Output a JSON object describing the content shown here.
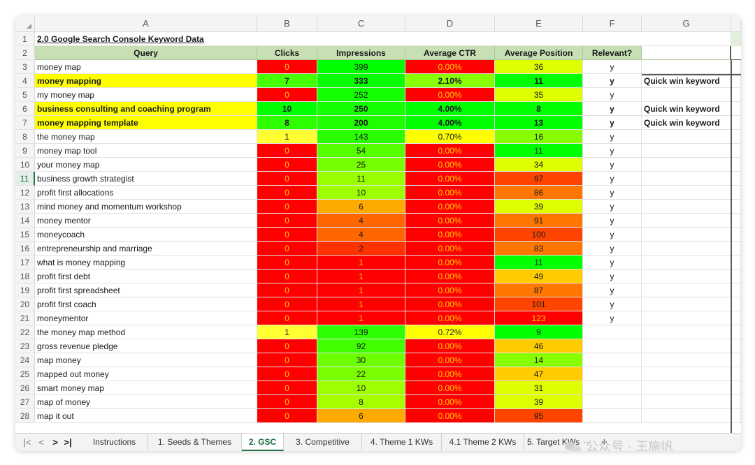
{
  "colors": {
    "header_bg": "#c6e0b4",
    "highlight_yellow": "#ffff00",
    "heat_red": "#ff0000",
    "heat_green": "#00ff00",
    "accent": "#217346"
  },
  "columns": [
    "A",
    "B",
    "C",
    "D",
    "E",
    "F",
    "G"
  ],
  "sheet": {
    "title": "2.0 Google Search Console Keyword Data",
    "headers": [
      "Query",
      "Clicks",
      "Impressions",
      "Average CTR",
      "Average Position",
      "Relevant?",
      ""
    ],
    "rows": [
      {
        "n": "3",
        "query": "money map",
        "clicks": "0",
        "impressions": "399",
        "ctr": "0.00%",
        "position": "36",
        "relevant": "y",
        "note": "",
        "hl": false
      },
      {
        "n": "4",
        "query": "money mapping",
        "clicks": "7",
        "impressions": "333",
        "ctr": "2.10%",
        "position": "11",
        "relevant": "y",
        "note": "Quick win keyword",
        "hl": true
      },
      {
        "n": "5",
        "query": "my money map",
        "clicks": "0",
        "impressions": "252",
        "ctr": "0.00%",
        "position": "35",
        "relevant": "y",
        "note": "",
        "hl": false
      },
      {
        "n": "6",
        "query": "business consulting and coaching program",
        "clicks": "10",
        "impressions": "250",
        "ctr": "4.00%",
        "position": "8",
        "relevant": "y",
        "note": "Quick win keyword",
        "hl": true
      },
      {
        "n": "7",
        "query": "money mapping template",
        "clicks": "8",
        "impressions": "200",
        "ctr": "4.00%",
        "position": "13",
        "relevant": "y",
        "note": "Quick win keyword",
        "hl": true
      },
      {
        "n": "8",
        "query": "the money map",
        "clicks": "1",
        "impressions": "143",
        "ctr": "0.70%",
        "position": "16",
        "relevant": "y",
        "note": "",
        "hl": false
      },
      {
        "n": "9",
        "query": "money map tool",
        "clicks": "0",
        "impressions": "54",
        "ctr": "0.00%",
        "position": "11",
        "relevant": "y",
        "note": "",
        "hl": false
      },
      {
        "n": "10",
        "query": "your money map",
        "clicks": "0",
        "impressions": "25",
        "ctr": "0.00%",
        "position": "34",
        "relevant": "y",
        "note": "",
        "hl": false
      },
      {
        "n": "11",
        "query": "business growth strategist",
        "clicks": "0",
        "impressions": "11",
        "ctr": "0.00%",
        "position": "97",
        "relevant": "y",
        "note": "",
        "hl": false
      },
      {
        "n": "12",
        "query": "profit first allocations",
        "clicks": "0",
        "impressions": "10",
        "ctr": "0.00%",
        "position": "86",
        "relevant": "y",
        "note": "",
        "hl": false
      },
      {
        "n": "13",
        "query": "mind money and momentum workshop",
        "clicks": "0",
        "impressions": "6",
        "ctr": "0.00%",
        "position": "39",
        "relevant": "y",
        "note": "",
        "hl": false
      },
      {
        "n": "14",
        "query": "money mentor",
        "clicks": "0",
        "impressions": "4",
        "ctr": "0.00%",
        "position": "91",
        "relevant": "y",
        "note": "",
        "hl": false
      },
      {
        "n": "15",
        "query": "moneycoach",
        "clicks": "0",
        "impressions": "4",
        "ctr": "0.00%",
        "position": "100",
        "relevant": "y",
        "note": "",
        "hl": false
      },
      {
        "n": "16",
        "query": "entrepreneurship and marriage",
        "clicks": "0",
        "impressions": "2",
        "ctr": "0.00%",
        "position": "83",
        "relevant": "y",
        "note": "",
        "hl": false
      },
      {
        "n": "17",
        "query": "what is money mapping",
        "clicks": "0",
        "impressions": "1",
        "ctr": "0.00%",
        "position": "11",
        "relevant": "y",
        "note": "",
        "hl": false
      },
      {
        "n": "18",
        "query": "profit first debt",
        "clicks": "0",
        "impressions": "1",
        "ctr": "0.00%",
        "position": "49",
        "relevant": "y",
        "note": "",
        "hl": false
      },
      {
        "n": "19",
        "query": "profit first spreadsheet",
        "clicks": "0",
        "impressions": "1",
        "ctr": "0.00%",
        "position": "87",
        "relevant": "y",
        "note": "",
        "hl": false
      },
      {
        "n": "20",
        "query": "profit first coach",
        "clicks": "0",
        "impressions": "1",
        "ctr": "0.00%",
        "position": "101",
        "relevant": "y",
        "note": "",
        "hl": false
      },
      {
        "n": "21",
        "query": "moneymentor",
        "clicks": "0",
        "impressions": "1",
        "ctr": "0.00%",
        "position": "123",
        "relevant": "y",
        "note": "",
        "hl": false
      },
      {
        "n": "22",
        "query": "the money map method",
        "clicks": "1",
        "impressions": "139",
        "ctr": "0.72%",
        "position": "9",
        "relevant": "",
        "note": "",
        "hl": false
      },
      {
        "n": "23",
        "query": "gross revenue pledge",
        "clicks": "0",
        "impressions": "92",
        "ctr": "0.00%",
        "position": "46",
        "relevant": "",
        "note": "",
        "hl": false
      },
      {
        "n": "24",
        "query": "map money",
        "clicks": "0",
        "impressions": "30",
        "ctr": "0.00%",
        "position": "14",
        "relevant": "",
        "note": "",
        "hl": false
      },
      {
        "n": "25",
        "query": "mapped out money",
        "clicks": "0",
        "impressions": "22",
        "ctr": "0.00%",
        "position": "47",
        "relevant": "",
        "note": "",
        "hl": false
      },
      {
        "n": "26",
        "query": "smart money map",
        "clicks": "0",
        "impressions": "10",
        "ctr": "0.00%",
        "position": "31",
        "relevant": "",
        "note": "",
        "hl": false
      },
      {
        "n": "27",
        "query": "map of money",
        "clicks": "0",
        "impressions": "8",
        "ctr": "0.00%",
        "position": "39",
        "relevant": "",
        "note": "",
        "hl": false
      },
      {
        "n": "28",
        "query": "map it out",
        "clicks": "0",
        "impressions": "6",
        "ctr": "0.00%",
        "position": "95",
        "relevant": "",
        "note": "",
        "hl": false
      }
    ]
  },
  "tabs": {
    "nav": [
      "|<",
      "<",
      ">",
      ">|"
    ],
    "items": [
      {
        "label": "Instructions",
        "active": false
      },
      {
        "label": "1. Seeds & Themes",
        "active": false
      },
      {
        "label": "2. GSC",
        "active": true
      },
      {
        "label": "3. Competitive",
        "active": false
      },
      {
        "label": "4. Theme 1 KWs",
        "active": false
      },
      {
        "label": "4.1 Theme 2 KWs",
        "active": false
      },
      {
        "label": "5. Target KWs",
        "active": false
      }
    ],
    "more": "···",
    "add": "+"
  },
  "watermark": "公众号 · 王施帆"
}
